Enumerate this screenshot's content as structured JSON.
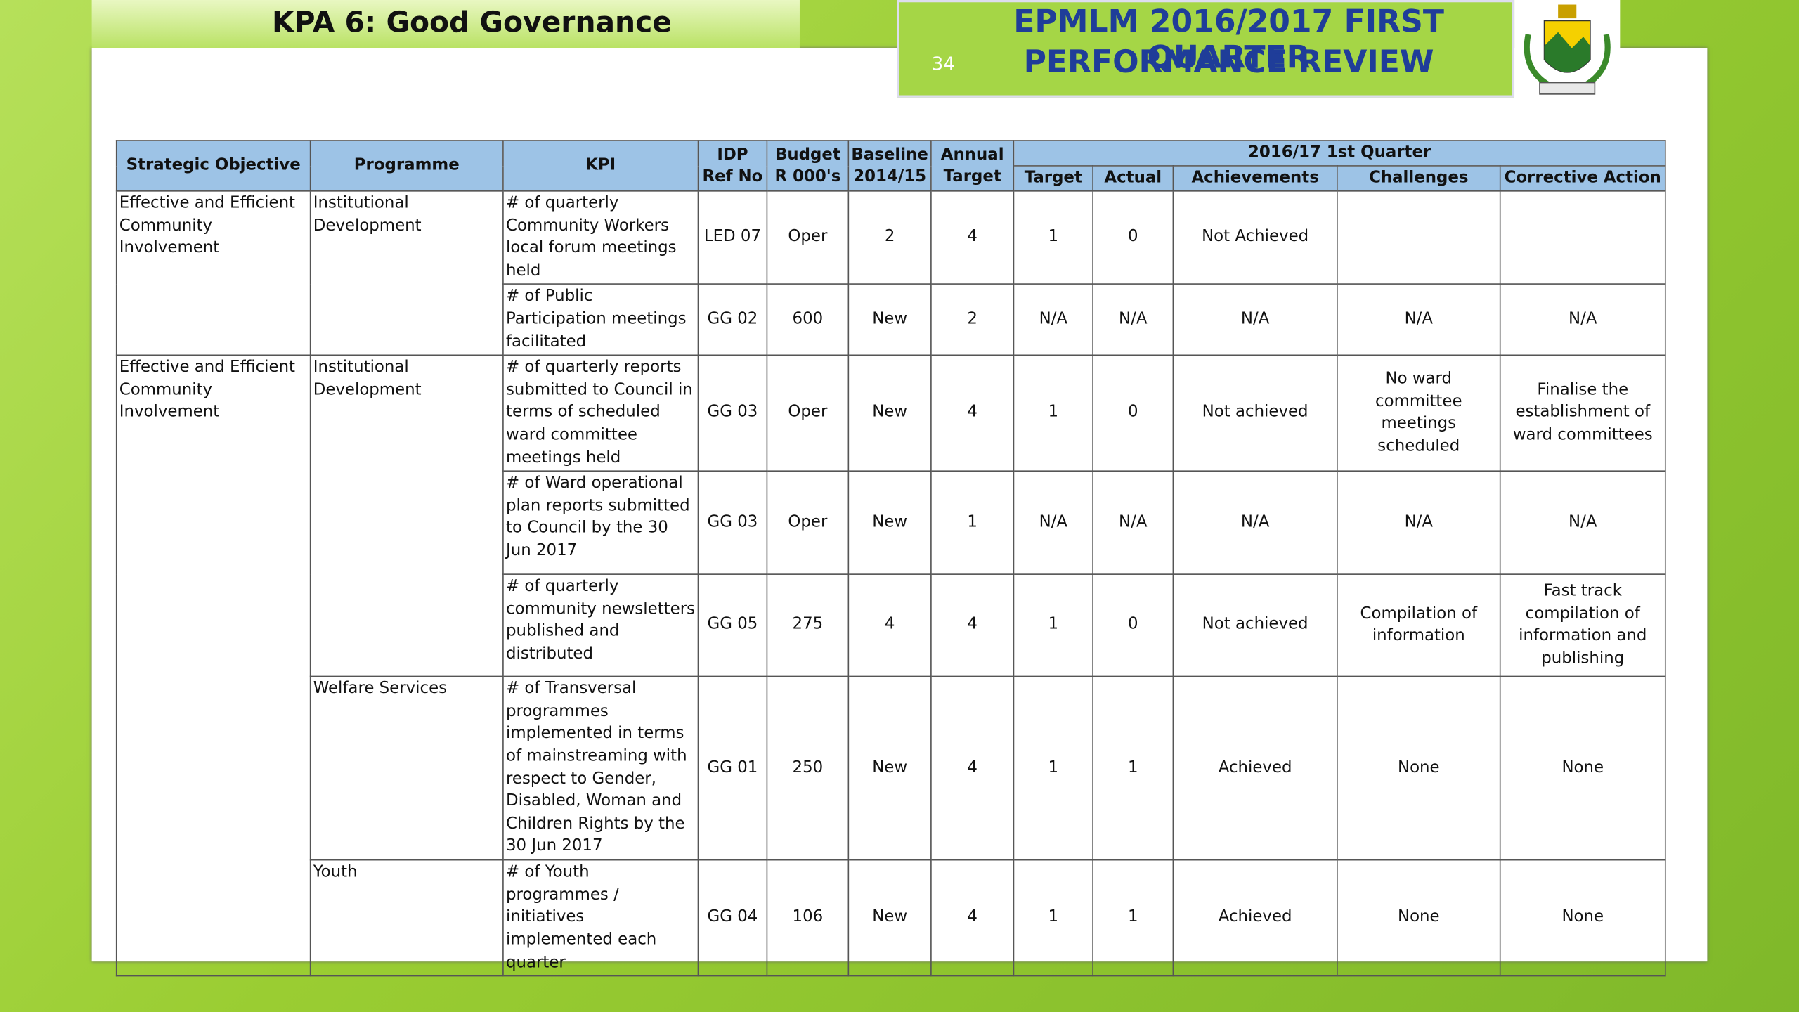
{
  "header": {
    "kpa_title": "KPA 6: Good Governance",
    "review_title": [
      "EPMLM 2016/2017 FIRST QUARTER",
      "PERFORMANCE REVIEW"
    ],
    "page_number": "34"
  },
  "table": {
    "headers": [
      "Strategic Objective",
      "Programme",
      "KPI",
      "IDP Ref No",
      "Budget R 000's",
      "Baseline 2014/15",
      "Annual Target"
    ],
    "quarter_header": "2016/17 1st Quarter",
    "quarter_columns": [
      "Target",
      "Actual",
      "Achievements",
      "Challenges",
      "Corrective Action"
    ],
    "groups": [
      {
        "objective": "Effective and Efficient Community Involvement",
        "programmes": [
          {
            "name": "Institutional Development",
            "rows": [
              [
                "# of quarterly Community Workers local forum meetings held",
                "LED 07",
                "Oper",
                "2",
                "4",
                "1",
                "0",
                "Not Achieved",
                null,
                null
              ],
              [
                "# of Public Participation meetings facilitated",
                "GG 02",
                "600",
                "New",
                "2",
                "N/A",
                "N/A",
                "N/A",
                "N/A",
                "N/A"
              ]
            ]
          }
        ]
      },
      {
        "objective": "Effective and Efficient Community Involvement",
        "programmes": [
          {
            "name": "Institutional Development",
            "rows": [
              [
                "# of quarterly reports submitted to Council in terms of scheduled ward committee meetings held",
                "GG 03",
                "Oper",
                "New",
                "4",
                "1",
                "0",
                "Not achieved",
                "No ward committee meetings scheduled",
                "Finalise the establishment of ward committees"
              ],
              [
                "# of Ward operational plan reports submitted to Council by the 30 Jun 2017",
                "GG 03",
                "Oper",
                "New",
                "1",
                "N/A",
                "N/A",
                "N/A",
                "N/A",
                "N/A"
              ],
              [
                "# of quarterly community newsletters published and distributed",
                "GG 05",
                "275",
                "4",
                "4",
                "1",
                "0",
                "Not achieved",
                "Compilation of information",
                "Fast track compilation of information and publishing"
              ]
            ]
          },
          {
            "name": "Welfare Services",
            "rows": [
              [
                "# of Transversal programmes implemented in terms of mainstreaming with respect to Gender, Disabled, Woman and Children Rights by the 30 Jun 2017",
                "GG 01",
                "250",
                "New",
                "4",
                "1",
                "1",
                "Achieved",
                "None",
                "None"
              ]
            ]
          },
          {
            "name": "Youth",
            "rows": [
              [
                "# of Youth programmes / initiatives implemented each quarter",
                "GG 04",
                "106",
                "New",
                "4",
                "1",
                "1",
                "Achieved",
                "None",
                "None"
              ]
            ]
          }
        ]
      }
    ]
  }
}
